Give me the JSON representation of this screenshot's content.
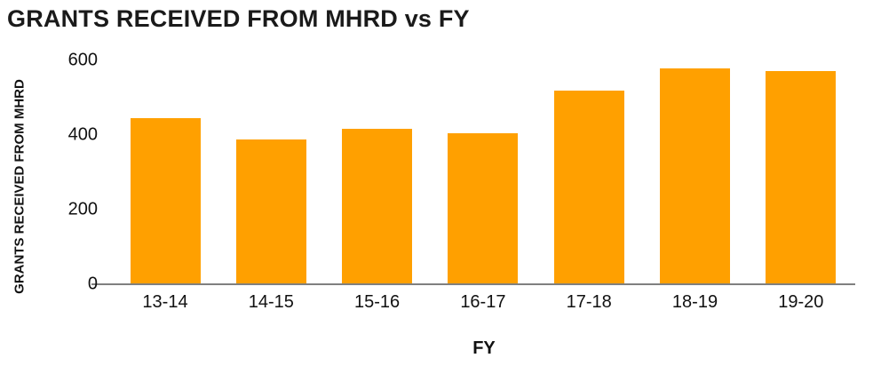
{
  "title": "GRANTS RECEIVED FROM MHRD vs FY",
  "chart_data": {
    "type": "bar",
    "title": "GRANTS RECEIVED FROM MHRD vs FY",
    "categories": [
      "13-14",
      "14-15",
      "15-16",
      "16-17",
      "17-18",
      "18-19",
      "19-20"
    ],
    "values": [
      445,
      388,
      415,
      403,
      519,
      578,
      570
    ],
    "xlabel": "FY",
    "ylabel": "GRANTS RECEIVED FROM MHRD",
    "ylim": [
      0,
      600
    ],
    "yticks": [
      0,
      200,
      400,
      600
    ],
    "bar_color": "#FFA000",
    "axis_line_color": "#808080",
    "text_color": "#111111",
    "grid": false,
    "legend": false
  }
}
